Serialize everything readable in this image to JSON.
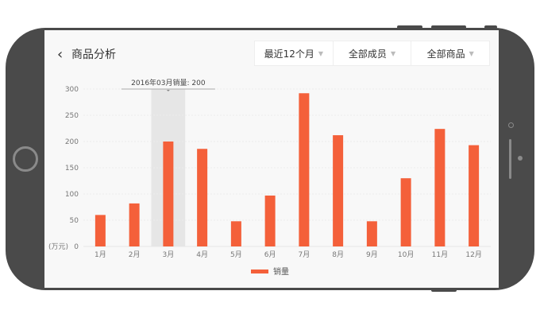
{
  "header": {
    "back_icon": "chevron-left-icon",
    "title": "商品分析"
  },
  "filters": [
    {
      "label": "最近12个月"
    },
    {
      "label": "全部成员"
    },
    {
      "label": "全部商品"
    }
  ],
  "colors": {
    "bar": "#f4603a",
    "highlight": "#e6e6e6",
    "frame": "#4a4a4a"
  },
  "tooltip": {
    "text": "2016年03月销量: 200",
    "category_index": 2
  },
  "chart_data": {
    "type": "bar",
    "categories": [
      "1月",
      "2月",
      "3月",
      "4月",
      "5月",
      "6月",
      "7月",
      "8月",
      "9月",
      "10月",
      "11月",
      "12月"
    ],
    "series": [
      {
        "name": "销量",
        "values": [
          60,
          82,
          200,
          186,
          48,
          97,
          292,
          212,
          48,
          130,
          224,
          193
        ]
      }
    ],
    "yunit": "(万元)",
    "ylim": [
      0,
      300
    ],
    "yticks": [
      0,
      50,
      100,
      150,
      200,
      250,
      300
    ],
    "grid": true,
    "legend": "bottom"
  }
}
